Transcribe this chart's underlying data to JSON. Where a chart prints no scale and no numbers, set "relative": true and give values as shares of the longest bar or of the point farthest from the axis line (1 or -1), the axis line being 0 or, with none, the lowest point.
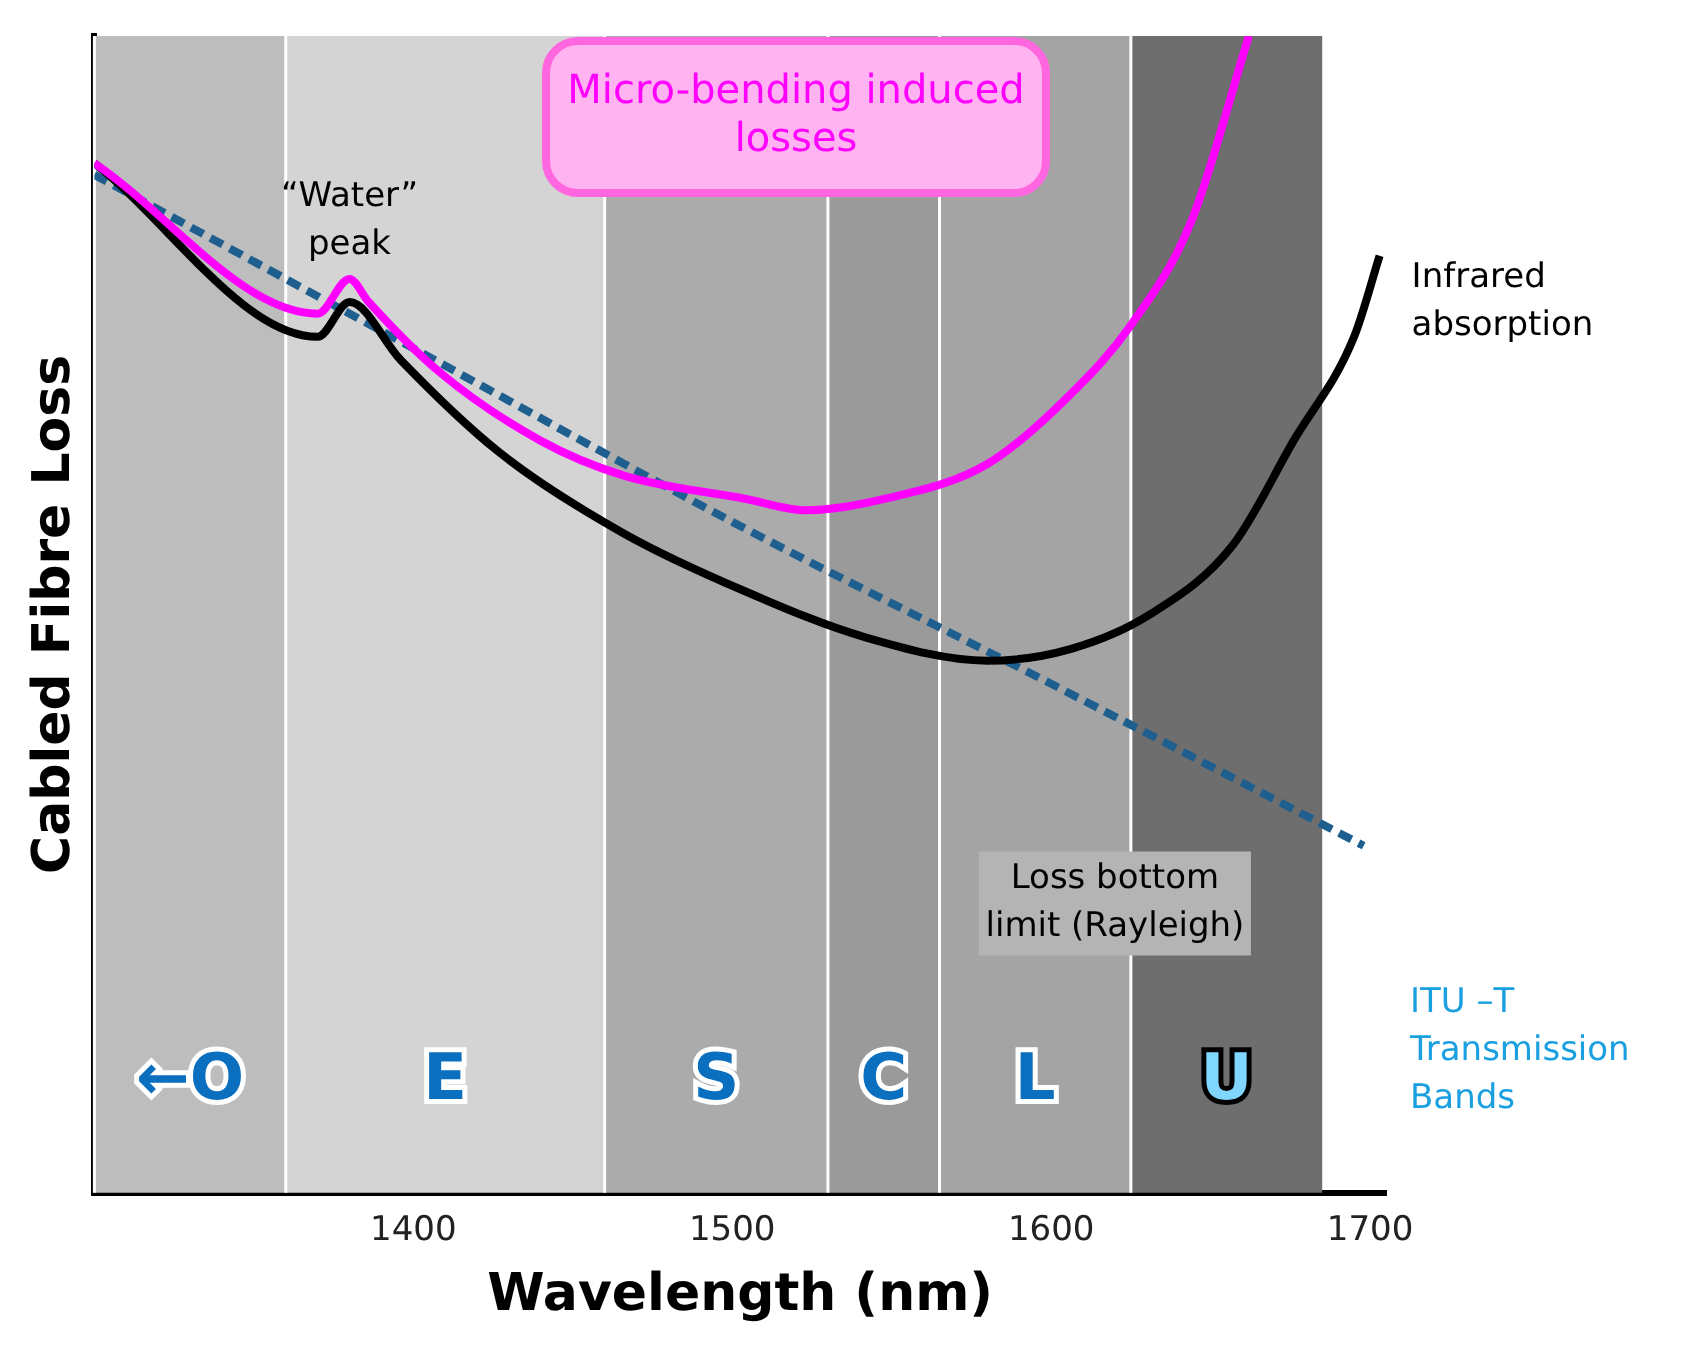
{
  "chart_data": {
    "type": "line",
    "relative": true,
    "xlabel": "Wavelength (nm)",
    "ylabel": "Cabled Fibre Loss",
    "xlim": [
      1300,
      1705
    ],
    "xticks": [
      1400,
      1500,
      1600,
      1700
    ],
    "grid": false,
    "legend": false,
    "marker": "none",
    "series": [
      {
        "color": "#ff00ff",
        "line_style": "solid",
        "x": [
          1300,
          1370,
          1380,
          1386,
          1408,
          1440,
          1466,
          1504,
          1523,
          1548,
          1580,
          1606,
          1625,
          1644,
          1662
        ],
        "values": [
          0.89,
          0.76,
          0.79,
          0.77,
          0.71,
          0.65,
          0.62,
          0.6,
          0.59,
          0.6,
          0.63,
          0.69,
          0.75,
          0.84,
          1.0
        ]
      },
      {
        "color": "#000000",
        "line_style": "solid",
        "x": [
          1300,
          1370,
          1380,
          1396,
          1427,
          1466,
          1504,
          1542,
          1580,
          1606,
          1631,
          1657,
          1676,
          1695,
          1703
        ],
        "values": [
          0.89,
          0.74,
          0.77,
          0.72,
          0.64,
          0.57,
          0.52,
          0.48,
          0.46,
          0.47,
          0.5,
          0.56,
          0.65,
          0.74,
          0.81
        ]
      },
      {
        "color": "#1f5f8f",
        "line_style": "dashed",
        "x": [
          1300,
          1400,
          1500,
          1600,
          1698
        ],
        "values": [
          0.88,
          0.73,
          0.58,
          0.44,
          0.3
        ]
      }
    ],
    "bands": [
      {
        "axis": "x",
        "from": 1300,
        "to": 1360,
        "label": "←O",
        "color": "#bdbdbd"
      },
      {
        "axis": "x",
        "from": 1360,
        "to": 1460,
        "label": "E",
        "color": "#d4d4d4"
      },
      {
        "axis": "x",
        "from": 1460,
        "to": 1530,
        "label": "S",
        "color": "#ababab"
      },
      {
        "axis": "x",
        "from": 1530,
        "to": 1565,
        "label": "C",
        "color": "#9a9a9a"
      },
      {
        "axis": "x",
        "from": 1565,
        "to": 1625,
        "label": "L",
        "color": "#a4a4a4"
      },
      {
        "axis": "x",
        "from": 1625,
        "to": 1685,
        "label": "U",
        "color": "#6e6e6e"
      }
    ],
    "annotations": [
      "“Water” peak",
      "Micro-bending induced losses",
      "Infrared absorption",
      "Loss bottom limit (Rayleigh)",
      "ITU –T Transmission Bands"
    ]
  }
}
